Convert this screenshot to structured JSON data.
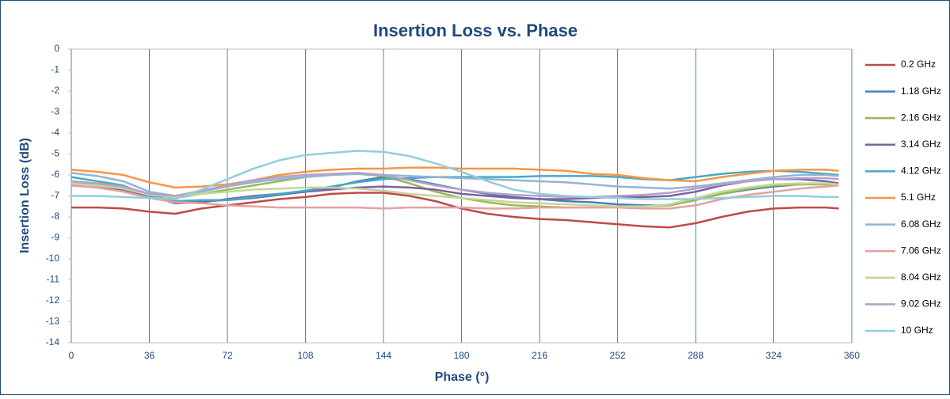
{
  "chart_data": {
    "type": "line",
    "title": "Insertion Loss vs. Phase",
    "x_label": "Phase (°)",
    "y_label": "Insertion Loss (dB)",
    "x": [
      0,
      12,
      24,
      36,
      48,
      60,
      72,
      84,
      96,
      108,
      120,
      132,
      144,
      156,
      168,
      180,
      192,
      204,
      216,
      228,
      240,
      252,
      264,
      276,
      288,
      300,
      312,
      324,
      336,
      348,
      354
    ],
    "xlim": [
      0,
      360
    ],
    "xticks": [
      0,
      36,
      72,
      108,
      144,
      180,
      216,
      252,
      288,
      324,
      360
    ],
    "ylim": [
      -14,
      0
    ],
    "yticks": [
      0,
      -1,
      -2,
      -3,
      -4,
      -5,
      -6,
      -7,
      -8,
      -9,
      -10,
      -11,
      -12,
      -13,
      -14
    ],
    "grid": "x",
    "legend": "right",
    "series": [
      {
        "name": "0.2 GHz",
        "color": "#be4b48",
        "values": [
          -7.55,
          -7.55,
          -7.6,
          -7.75,
          -7.85,
          -7.6,
          -7.45,
          -7.3,
          -7.15,
          -7.05,
          -6.9,
          -6.85,
          -6.85,
          -7.0,
          -7.25,
          -7.6,
          -7.85,
          -8.0,
          -8.1,
          -8.15,
          -8.25,
          -8.35,
          -8.45,
          -8.5,
          -8.3,
          -8.0,
          -7.75,
          -7.6,
          -7.55,
          -7.55,
          -7.6
        ]
      },
      {
        "name": "1.18 GHz",
        "color": "#4a7ebb",
        "values": [
          -6.4,
          -6.45,
          -6.55,
          -6.95,
          -7.25,
          -7.25,
          -7.2,
          -7.1,
          -6.95,
          -6.8,
          -6.6,
          -6.3,
          -6.1,
          -6.2,
          -6.45,
          -6.7,
          -6.9,
          -7.05,
          -7.15,
          -7.25,
          -7.3,
          -7.4,
          -7.45,
          -7.45,
          -7.2,
          -6.9,
          -6.7,
          -6.55,
          -6.45,
          -6.45,
          -6.45
        ]
      },
      {
        "name": "2.16 GHz",
        "color": "#98b954",
        "values": [
          -6.3,
          -6.4,
          -6.6,
          -6.9,
          -7.1,
          -6.9,
          -6.7,
          -6.5,
          -6.3,
          -6.1,
          -6.0,
          -5.95,
          -6.05,
          -6.4,
          -6.8,
          -7.1,
          -7.3,
          -7.45,
          -7.5,
          -7.55,
          -7.55,
          -7.5,
          -7.5,
          -7.45,
          -7.2,
          -6.9,
          -6.65,
          -6.5,
          -6.45,
          -6.45,
          -6.45
        ]
      },
      {
        "name": "3.14 GHz",
        "color": "#7d60a0",
        "values": [
          -6.5,
          -6.6,
          -6.7,
          -7.0,
          -7.35,
          -7.3,
          -7.15,
          -7.0,
          -6.9,
          -6.8,
          -6.7,
          -6.6,
          -6.55,
          -6.6,
          -6.7,
          -6.9,
          -7.0,
          -7.1,
          -7.15,
          -7.15,
          -7.1,
          -7.05,
          -7.05,
          -7.0,
          -6.8,
          -6.5,
          -6.3,
          -6.2,
          -6.2,
          -6.3,
          -6.4
        ]
      },
      {
        "name": "4.12 GHz",
        "color": "#46aac5",
        "values": [
          -6.1,
          -6.3,
          -6.5,
          -7.0,
          -7.25,
          -7.2,
          -7.2,
          -7.05,
          -6.9,
          -6.75,
          -6.55,
          -6.35,
          -6.2,
          -6.15,
          -6.1,
          -6.1,
          -6.1,
          -6.1,
          -6.05,
          -6.05,
          -6.05,
          -6.1,
          -6.2,
          -6.25,
          -6.1,
          -5.95,
          -5.85,
          -5.8,
          -5.85,
          -5.95,
          -6.0
        ]
      },
      {
        "name": "5.1 GHz",
        "color": "#f79646",
        "values": [
          -5.75,
          -5.85,
          -6.0,
          -6.35,
          -6.6,
          -6.55,
          -6.45,
          -6.25,
          -6.0,
          -5.85,
          -5.75,
          -5.7,
          -5.7,
          -5.65,
          -5.65,
          -5.7,
          -5.7,
          -5.7,
          -5.75,
          -5.8,
          -5.95,
          -6.0,
          -6.15,
          -6.25,
          -6.3,
          -6.1,
          -5.95,
          -5.8,
          -5.75,
          -5.75,
          -5.8
        ]
      },
      {
        "name": "6.08 GHz",
        "color": "#95b3d7",
        "values": [
          -5.9,
          -6.05,
          -6.3,
          -6.8,
          -7.0,
          -6.8,
          -6.55,
          -6.35,
          -6.2,
          -6.1,
          -6.0,
          -5.95,
          -6.0,
          -6.05,
          -6.1,
          -6.15,
          -6.2,
          -6.25,
          -6.3,
          -6.35,
          -6.45,
          -6.55,
          -6.6,
          -6.65,
          -6.55,
          -6.4,
          -6.25,
          -6.1,
          -6.0,
          -6.0,
          -6.05
        ]
      },
      {
        "name": "7.06 GHz",
        "color": "#e6a0a0",
        "values": [
          -6.5,
          -6.6,
          -6.8,
          -7.1,
          -7.3,
          -7.35,
          -7.45,
          -7.5,
          -7.55,
          -7.55,
          -7.55,
          -7.55,
          -7.6,
          -7.55,
          -7.55,
          -7.55,
          -7.6,
          -7.6,
          -7.55,
          -7.55,
          -7.55,
          -7.55,
          -7.6,
          -7.6,
          -7.45,
          -7.15,
          -6.95,
          -6.8,
          -6.65,
          -6.55,
          -6.5
        ]
      },
      {
        "name": "8.04 GHz",
        "color": "#c3d69b",
        "values": [
          -6.4,
          -6.5,
          -6.65,
          -6.95,
          -7.05,
          -6.9,
          -6.8,
          -6.7,
          -6.65,
          -6.6,
          -6.6,
          -6.65,
          -6.75,
          -6.9,
          -7.0,
          -7.1,
          -7.2,
          -7.3,
          -7.35,
          -7.4,
          -7.45,
          -7.5,
          -7.5,
          -7.4,
          -7.1,
          -6.8,
          -6.6,
          -6.45,
          -6.4,
          -6.4,
          -6.45
        ]
      },
      {
        "name": "9.02 GHz",
        "color": "#b3a2c7",
        "values": [
          -6.3,
          -6.4,
          -6.55,
          -6.9,
          -7.0,
          -6.75,
          -6.5,
          -6.25,
          -6.1,
          -6.0,
          -5.95,
          -5.9,
          -6.0,
          -6.25,
          -6.5,
          -6.7,
          -6.85,
          -6.95,
          -7.0,
          -7.05,
          -7.05,
          -7.0,
          -6.95,
          -6.85,
          -6.65,
          -6.45,
          -6.3,
          -6.2,
          -6.15,
          -6.15,
          -6.2
        ]
      },
      {
        "name": "10 GHz",
        "color": "#93cddd",
        "values": [
          -7.0,
          -7.0,
          -7.05,
          -7.1,
          -7.15,
          -6.7,
          -6.2,
          -5.7,
          -5.3,
          -5.05,
          -4.95,
          -4.85,
          -4.9,
          -5.1,
          -5.45,
          -5.85,
          -6.3,
          -6.7,
          -6.9,
          -7.0,
          -7.05,
          -7.1,
          -7.15,
          -7.15,
          -7.15,
          -7.1,
          -7.05,
          -7.0,
          -7.0,
          -7.05,
          -7.05
        ]
      }
    ]
  }
}
